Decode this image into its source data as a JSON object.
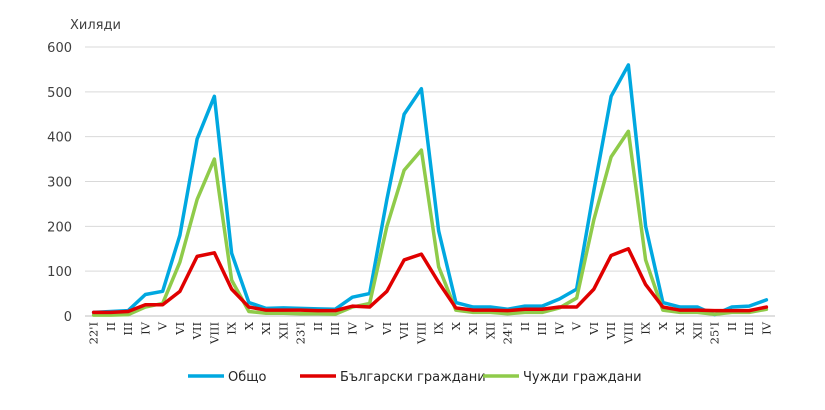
{
  "chart_data": {
    "type": "line",
    "unit_label": "Хиляди",
    "ylim": [
      0,
      600
    ],
    "yticks": [
      "0",
      "100",
      "200",
      "300",
      "400",
      "500",
      "600"
    ],
    "grid": true,
    "legend_position": "bottom",
    "categories": [
      "22'I",
      "II",
      "III",
      "IV",
      "V",
      "VI",
      "VII",
      "VIII",
      "IX",
      "X",
      "XI",
      "XII",
      "23'I",
      "II",
      "III",
      "IV",
      "V",
      "VI",
      "VII",
      "VIII",
      "IX",
      "X",
      "XI",
      "XII",
      "24'I",
      "II",
      "III",
      "IV",
      "V",
      "VI",
      "VII",
      "VIII",
      "IX",
      "X",
      "XI",
      "XII",
      "25'I",
      "II",
      "III",
      "IV"
    ],
    "series": [
      {
        "name": "Общо",
        "color": "#00A8E0",
        "values": [
          8,
          10,
          12,
          48,
          55,
          180,
          395,
          490,
          140,
          30,
          17,
          18,
          17,
          16,
          15,
          42,
          50,
          260,
          450,
          507,
          190,
          30,
          20,
          20,
          15,
          22,
          22,
          38,
          60,
          280,
          490,
          560,
          200,
          30,
          20,
          20,
          3,
          20,
          22,
          36
        ]
      },
      {
        "name": "Български граждани",
        "color": "#E00000",
        "values": [
          8,
          8,
          10,
          25,
          25,
          55,
          133,
          141,
          60,
          20,
          13,
          13,
          13,
          12,
          12,
          22,
          20,
          55,
          125,
          138,
          75,
          18,
          13,
          13,
          12,
          15,
          15,
          20,
          20,
          60,
          135,
          150,
          70,
          20,
          13,
          13,
          12,
          12,
          12,
          20
        ]
      },
      {
        "name": "Чужди граждани",
        "color": "#8FCB4A",
        "values": [
          2,
          2,
          3,
          20,
          28,
          120,
          260,
          350,
          80,
          10,
          6,
          6,
          5,
          5,
          4,
          20,
          28,
          200,
          325,
          370,
          110,
          13,
          8,
          8,
          5,
          8,
          8,
          18,
          40,
          215,
          355,
          412,
          125,
          13,
          8,
          8,
          4,
          8,
          8,
          15
        ]
      }
    ]
  }
}
